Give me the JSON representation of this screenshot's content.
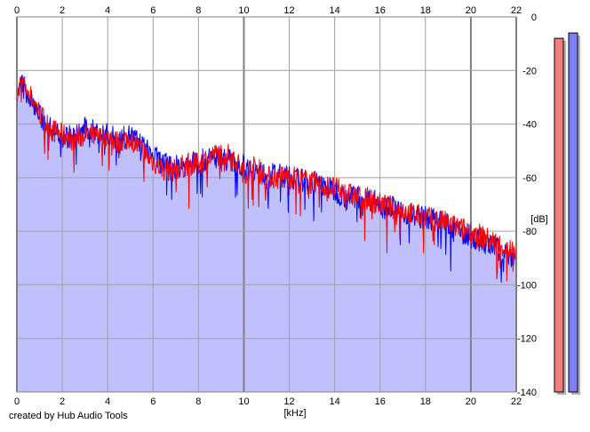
{
  "footer": {
    "credit": "created by Hub Audio Tools"
  },
  "colors": {
    "background": "#ffffff",
    "plot_fill": "#c0c0ff",
    "grid": "#a0a0a0",
    "left_channel": "#ff0000",
    "right_channel": "#0000ff",
    "meter_left": "#f08080",
    "meter_right": "#8080f0"
  },
  "chart_data": {
    "type": "area",
    "xlabel": "[kHz]",
    "ylabel": "[dB]",
    "xlim": [
      0,
      22
    ],
    "ylim": [
      -140,
      0
    ],
    "xticks": [
      0,
      2,
      4,
      6,
      8,
      10,
      12,
      14,
      16,
      18,
      20,
      22
    ],
    "yticks": [
      0,
      -20,
      -40,
      -60,
      -80,
      -100,
      -120,
      -140
    ],
    "grid": true,
    "series": [
      {
        "channel": "left",
        "color": "#ff0000",
        "x": [
          0,
          0.2,
          0.5,
          1,
          1.5,
          2,
          2.5,
          3,
          3.5,
          4,
          4.5,
          5,
          5.5,
          6,
          6.5,
          7,
          7.5,
          8,
          8.5,
          9,
          9.5,
          10,
          10.5,
          11,
          11.5,
          12,
          12.5,
          13,
          13.5,
          14,
          14.5,
          15,
          15.5,
          16,
          16.5,
          17,
          17.5,
          18,
          18.5,
          19,
          19.5,
          20,
          20.5,
          21,
          21.5,
          22
        ],
        "y": [
          -30,
          -24,
          -28,
          -36,
          -42,
          -44,
          -46,
          -44,
          -45,
          -45,
          -47,
          -45,
          -50,
          -54,
          -57,
          -57,
          -55,
          -55,
          -52,
          -51,
          -52,
          -58,
          -56,
          -60,
          -60,
          -59,
          -61,
          -62,
          -63,
          -64,
          -66,
          -67,
          -68,
          -70,
          -71,
          -72,
          -74,
          -75,
          -76,
          -77,
          -79,
          -80,
          -82,
          -84,
          -86,
          -88
        ]
      },
      {
        "channel": "right",
        "color": "#0000ff",
        "x": [
          0,
          0.2,
          0.5,
          1,
          1.5,
          2,
          2.5,
          3,
          3.5,
          4,
          4.5,
          5,
          5.5,
          6,
          6.5,
          7,
          7.5,
          8,
          8.5,
          9,
          9.5,
          10,
          10.5,
          11,
          11.5,
          12,
          12.5,
          13,
          13.5,
          14,
          14.5,
          15,
          15.5,
          16,
          16.5,
          17,
          17.5,
          18,
          18.5,
          19,
          19.5,
          20,
          20.5,
          21,
          21.5,
          22
        ],
        "y": [
          -32,
          -25,
          -29,
          -37,
          -42,
          -44,
          -45,
          -42,
          -43,
          -44,
          -46,
          -44,
          -48,
          -52,
          -55,
          -56,
          -55,
          -54,
          -53,
          -52,
          -54,
          -56,
          -57,
          -59,
          -59,
          -60,
          -61,
          -61,
          -63,
          -65,
          -67,
          -67,
          -68,
          -69,
          -71,
          -73,
          -74,
          -75,
          -76,
          -78,
          -80,
          -82,
          -84,
          -86,
          -88,
          -90
        ]
      }
    ]
  },
  "level_meters": [
    {
      "channel": "left",
      "color": "#f08080",
      "level_db": -8
    },
    {
      "channel": "right",
      "color": "#8080f0",
      "level_db": -6
    }
  ]
}
